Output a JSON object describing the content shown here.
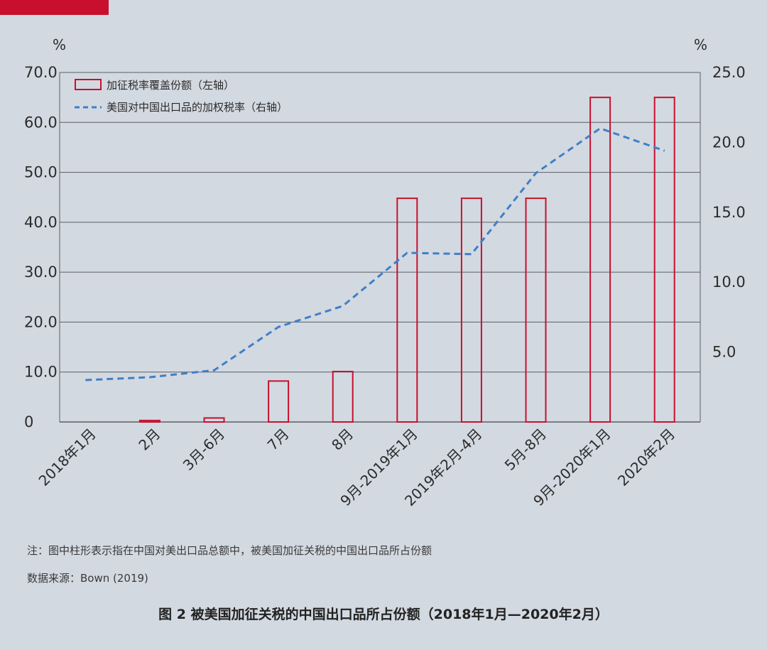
{
  "page": {
    "accent_color": "#c8102e",
    "note": "注：图中柱形表示指在中国对美出口品总额中，被美国加征关税的中国出口品所占份额",
    "source": "数据来源：Bown (2019)",
    "caption": "图 2 被美国加征关税的中国出口品所占份额（2018年1月—2020年2月）"
  },
  "chart_data": {
    "type": "bar",
    "title": "图 2 被美国加征关税的中国出口品所占份额（2018年1月—2020年2月）",
    "categories": [
      "2018年1月",
      "2月",
      "3月-6月",
      "7月",
      "8月",
      "9月-2019年1月",
      "2019年2月-4月",
      "5月-8月",
      "9月-2020年1月",
      "2020年2月"
    ],
    "series": [
      {
        "name": "加征税率覆盖份额（左轴）",
        "type": "bar",
        "axis": "left",
        "color": "#c8102e",
        "values": [
          0,
          0.3,
          0.8,
          8.2,
          10.1,
          44.8,
          44.8,
          44.8,
          65.0,
          65.0
        ]
      },
      {
        "name": "美国对中国出口品的加权税率（右轴）",
        "type": "line",
        "style": "dashed",
        "axis": "right",
        "color": "#3f7fc8",
        "values": [
          3.0,
          3.2,
          3.7,
          6.8,
          8.3,
          12.1,
          12.0,
          17.8,
          21.0,
          19.4
        ]
      }
    ],
    "left_axis": {
      "unit": "%",
      "ylim": [
        0,
        70
      ],
      "ticks": [
        0,
        10,
        20,
        30,
        40,
        50,
        60,
        70
      ],
      "tick_labels": [
        "0",
        "10.0",
        "20.0",
        "30.0",
        "40.0",
        "50.0",
        "60.0",
        "70.0"
      ]
    },
    "right_axis": {
      "unit": "%",
      "ylim": [
        0,
        25
      ],
      "ticks": [
        5,
        10,
        15,
        20,
        25
      ],
      "tick_labels": [
        "5.0",
        "10.0",
        "15.0",
        "20.0",
        "25.0"
      ]
    },
    "grid": true,
    "legend_position": "top-left",
    "xtick_rotation": -45
  }
}
